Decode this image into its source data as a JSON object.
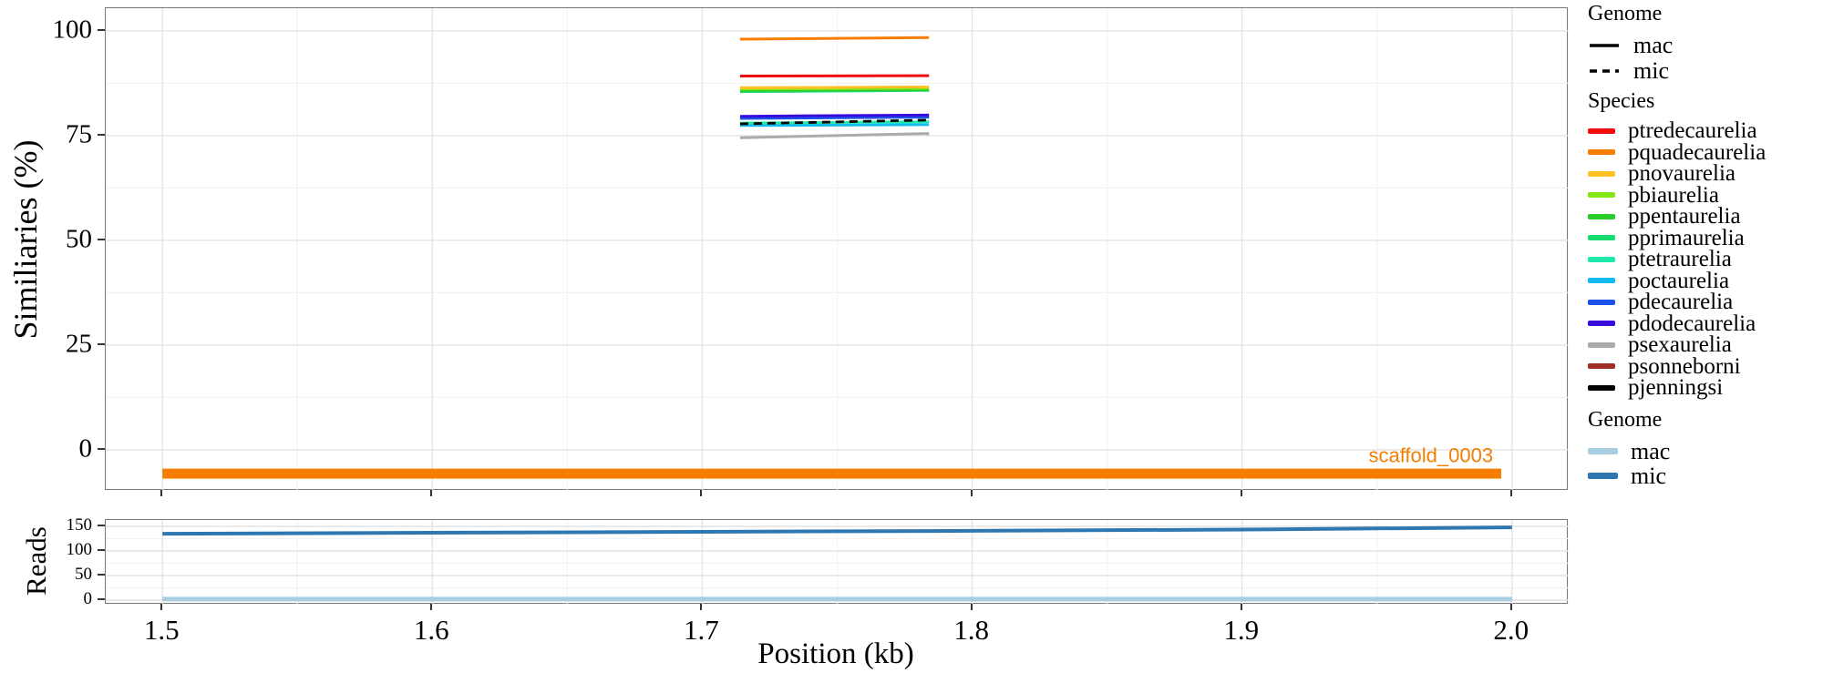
{
  "figure": {
    "axes": {
      "x_title": "Position (kb)",
      "y_title_main": "Similiaries (%)",
      "y_title_reads": "Reads"
    },
    "annotation_label": "scaffold_0003",
    "accent_orange": "#F57E00"
  },
  "legends": {
    "genome_lines": {
      "title": "Genome",
      "items": [
        {
          "label": "mac",
          "style": "solid"
        },
        {
          "label": "mic",
          "style": "dashed"
        }
      ]
    },
    "species": {
      "title": "Species",
      "items": [
        {
          "label": "ptredecaurelia",
          "color": "#EE0C0C"
        },
        {
          "label": "pquadecaurelia",
          "color": "#F57E00"
        },
        {
          "label": "pnovaurelia",
          "color": "#FFC125"
        },
        {
          "label": "pbiaurelia",
          "color": "#84E613"
        },
        {
          "label": "ppentaurelia",
          "color": "#2ACC2A"
        },
        {
          "label": "pprimaurelia",
          "color": "#18DC6E"
        },
        {
          "label": "ptetraurelia",
          "color": "#1FE8AC"
        },
        {
          "label": "poctaurelia",
          "color": "#14BCEE"
        },
        {
          "label": "pdecaurelia",
          "color": "#1A52E8"
        },
        {
          "label": "pdodecaurelia",
          "color": "#3A0CDC"
        },
        {
          "label": "psexaurelia",
          "color": "#ABABAB"
        },
        {
          "label": "psonneborni",
          "color": "#A03026"
        },
        {
          "label": "pjenningsi",
          "color": "#000000"
        }
      ]
    },
    "genome_reads": {
      "title": "Genome",
      "items": [
        {
          "label": "mac",
          "color": "#A8CEE2"
        },
        {
          "label": "mic",
          "color": "#2E77B0"
        }
      ]
    }
  },
  "chart_data": [
    {
      "id": "similarity",
      "type": "line",
      "title": "",
      "xlabel": "Position (kb)",
      "ylabel": "Similiaries (%)",
      "xlim": [
        1.479,
        2.021
      ],
      "ylim": [
        -9.8,
        105.4
      ],
      "grid": true,
      "x_ticks": [
        1.5,
        1.6,
        1.7,
        1.8,
        1.9,
        2.0
      ],
      "x_tick_labels": [
        "1.5",
        "1.6",
        "1.7",
        "1.8",
        "1.9",
        "2.0"
      ],
      "x_minor": [
        1.55,
        1.65,
        1.75,
        1.85,
        1.95
      ],
      "y_ticks": [
        0,
        25,
        50,
        75,
        100
      ],
      "y_tick_labels": [
        "0",
        "25",
        "50",
        "75",
        "100"
      ],
      "y_minor": [
        12.5,
        37.5,
        62.5,
        87.5
      ],
      "series": [
        {
          "species": "psexaurelia",
          "genome": "mac",
          "color": "#ABABAB",
          "width": 3,
          "points": [
            [
              1.714,
              74.5
            ],
            [
              1.784,
              75.5
            ]
          ]
        },
        {
          "species": "poctaurelia",
          "genome": "mac",
          "color": "#14BCEE",
          "width": 3,
          "points": [
            [
              1.714,
              77.4
            ],
            [
              1.784,
              77.6
            ]
          ]
        },
        {
          "species": "ptetraurelia",
          "genome": "mac",
          "color": "#1FE8AC",
          "width": 3,
          "points": [
            [
              1.714,
              78.0
            ],
            [
              1.784,
              78.3
            ]
          ]
        },
        {
          "species": "pdecaurelia",
          "genome": "mac",
          "color": "#1A52E8",
          "width": 3,
          "points": [
            [
              1.714,
              79.1
            ],
            [
              1.784,
              79.4
            ]
          ]
        },
        {
          "species": "pdodecaurelia",
          "genome": "mac",
          "color": "#3A0CDC",
          "width": 3,
          "points": [
            [
              1.714,
              79.6
            ],
            [
              1.784,
              79.9
            ]
          ]
        },
        {
          "species": "pprimaurelia",
          "genome": "mac",
          "color": "#18DC6E",
          "width": 3,
          "points": [
            [
              1.714,
              85.5
            ],
            [
              1.784,
              85.8
            ]
          ]
        },
        {
          "species": "ppentaurelia",
          "genome": "mac",
          "color": "#2ACC2A",
          "width": 3,
          "points": [
            [
              1.714,
              85.8
            ],
            [
              1.784,
              86.0
            ]
          ]
        },
        {
          "species": "pbiaurelia",
          "genome": "mac",
          "color": "#84E613",
          "width": 3,
          "points": [
            [
              1.714,
              86.1
            ],
            [
              1.784,
              86.3
            ]
          ]
        },
        {
          "species": "pnovaurelia",
          "genome": "mac",
          "color": "#FFC125",
          "width": 3,
          "points": [
            [
              1.714,
              86.4
            ],
            [
              1.784,
              86.6
            ]
          ]
        },
        {
          "species": "ptredecaurelia",
          "genome": "mac",
          "color": "#EE0C0C",
          "width": 3,
          "points": [
            [
              1.714,
              89.2
            ],
            [
              1.784,
              89.3
            ]
          ]
        },
        {
          "species": "pquadecaurelia",
          "genome": "mac",
          "color": "#F57E00",
          "width": 3,
          "points": [
            [
              1.714,
              98.0
            ],
            [
              1.784,
              98.4
            ]
          ]
        },
        {
          "species": "pjenningsi",
          "genome": "mic",
          "color": "#000000",
          "width": 2.8,
          "dash": "9,6",
          "points": [
            [
              1.714,
              77.8
            ],
            [
              1.784,
              78.7
            ]
          ]
        }
      ],
      "bars": [
        {
          "label": "scaffold_0003",
          "color": "#F57E00",
          "x_start": 1.5,
          "x_end": 1.996,
          "y": -5.7,
          "height": 2.4
        }
      ],
      "annotations": [
        {
          "text": "scaffold_0003",
          "x": 1.993,
          "y": -3,
          "color": "#F57E00",
          "anchor": "end"
        }
      ]
    },
    {
      "id": "reads",
      "type": "line",
      "title": "",
      "xlabel": "Position (kb)",
      "ylabel": "Reads",
      "xlim": [
        1.479,
        2.021
      ],
      "ylim": [
        -9.3,
        163
      ],
      "grid": true,
      "x_ticks": [
        1.5,
        1.6,
        1.7,
        1.8,
        1.9,
        2.0
      ],
      "x_tick_labels": [
        "1.5",
        "1.6",
        "1.7",
        "1.8",
        "1.9",
        "2.0"
      ],
      "x_minor": [
        1.55,
        1.65,
        1.75,
        1.85,
        1.95
      ],
      "y_ticks": [
        0,
        50,
        100,
        150
      ],
      "y_tick_labels": [
        "0",
        "50",
        "100",
        "150"
      ],
      "y_minor": [
        25,
        75,
        125
      ],
      "series": [
        {
          "species": "mic",
          "genome": "mic",
          "color": "#2E77B0",
          "width": 4,
          "points": [
            [
              1.5,
              135
            ],
            [
              1.6,
              137
            ],
            [
              1.7,
              139
            ],
            [
              1.8,
              141
            ],
            [
              1.9,
              143.5
            ],
            [
              2.0,
              148
            ]
          ]
        },
        {
          "species": "mac",
          "genome": "mac",
          "color": "#A8CEE2",
          "width": 5,
          "points": [
            [
              1.5,
              2
            ],
            [
              2.0,
              2
            ]
          ]
        }
      ]
    }
  ]
}
